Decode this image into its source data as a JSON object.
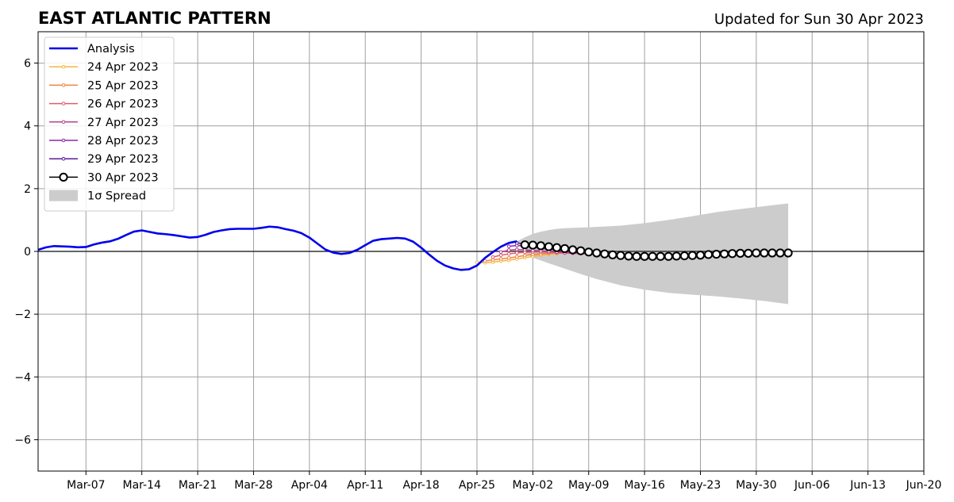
{
  "chart_data": {
    "type": "line",
    "title": "EAST ATLANTIC PATTERN",
    "subtitle": "Updated for Sun 30 Apr 2023",
    "xlabel": "",
    "ylabel": "",
    "ylim": [
      -7,
      7
    ],
    "xlim": [
      "2023-03-01",
      "2023-06-20"
    ],
    "x_ticks": [
      "Mar-07",
      "Mar-14",
      "Mar-21",
      "Mar-28",
      "Apr-04",
      "Apr-11",
      "Apr-18",
      "Apr-25",
      "May-02",
      "May-09",
      "May-16",
      "May-23",
      "May-30",
      "Jun-06",
      "Jun-13",
      "Jun-20"
    ],
    "x_tick_dates": [
      "2023-03-07",
      "2023-03-14",
      "2023-03-21",
      "2023-03-28",
      "2023-04-04",
      "2023-04-11",
      "2023-04-18",
      "2023-04-25",
      "2023-05-02",
      "2023-05-09",
      "2023-05-16",
      "2023-05-23",
      "2023-05-30",
      "2023-06-06",
      "2023-06-13",
      "2023-06-20"
    ],
    "y_ticks": [
      -6,
      -4,
      -2,
      0,
      2,
      4,
      6
    ],
    "y_tick_labels": [
      "−6",
      "−4",
      "−2",
      "0",
      "2",
      "4",
      "6"
    ],
    "grid": true,
    "legend_position": "top-left",
    "legend": [
      "Analysis",
      "24 Apr 2023",
      "25 Apr 2023",
      "26 Apr 2023",
      "27 Apr 2023",
      "28 Apr 2023",
      "29 Apr 2023",
      "30 Apr 2023",
      "1σ Spread"
    ],
    "analysis": {
      "name": "Analysis",
      "color": "#0000ee",
      "points": [
        [
          "2023-03-01",
          0.05
        ],
        [
          "2023-03-02",
          0.13
        ],
        [
          "2023-03-03",
          0.17
        ],
        [
          "2023-03-04",
          0.16
        ],
        [
          "2023-03-05",
          0.15
        ],
        [
          "2023-03-06",
          0.13
        ],
        [
          "2023-03-07",
          0.14
        ],
        [
          "2023-03-08",
          0.22
        ],
        [
          "2023-03-09",
          0.28
        ],
        [
          "2023-03-10",
          0.32
        ],
        [
          "2023-03-11",
          0.4
        ],
        [
          "2023-03-12",
          0.52
        ],
        [
          "2023-03-13",
          0.63
        ],
        [
          "2023-03-14",
          0.67
        ],
        [
          "2023-03-15",
          0.62
        ],
        [
          "2023-03-16",
          0.57
        ],
        [
          "2023-03-17",
          0.55
        ],
        [
          "2023-03-18",
          0.52
        ],
        [
          "2023-03-19",
          0.48
        ],
        [
          "2023-03-20",
          0.44
        ],
        [
          "2023-03-21",
          0.46
        ],
        [
          "2023-03-22",
          0.53
        ],
        [
          "2023-03-23",
          0.62
        ],
        [
          "2023-03-24",
          0.67
        ],
        [
          "2023-03-25",
          0.71
        ],
        [
          "2023-03-26",
          0.72
        ],
        [
          "2023-03-27",
          0.72
        ],
        [
          "2023-03-28",
          0.72
        ],
        [
          "2023-03-29",
          0.75
        ],
        [
          "2023-03-30",
          0.79
        ],
        [
          "2023-03-31",
          0.77
        ],
        [
          "2023-04-01",
          0.71
        ],
        [
          "2023-04-02",
          0.66
        ],
        [
          "2023-04-03",
          0.58
        ],
        [
          "2023-04-04",
          0.44
        ],
        [
          "2023-04-05",
          0.25
        ],
        [
          "2023-04-06",
          0.06
        ],
        [
          "2023-04-07",
          -0.04
        ],
        [
          "2023-04-08",
          -0.08
        ],
        [
          "2023-04-09",
          -0.05
        ],
        [
          "2023-04-10",
          0.05
        ],
        [
          "2023-04-11",
          0.2
        ],
        [
          "2023-04-12",
          0.34
        ],
        [
          "2023-04-13",
          0.39
        ],
        [
          "2023-04-14",
          0.41
        ],
        [
          "2023-04-15",
          0.43
        ],
        [
          "2023-04-16",
          0.41
        ],
        [
          "2023-04-17",
          0.31
        ],
        [
          "2023-04-18",
          0.12
        ],
        [
          "2023-04-19",
          -0.1
        ],
        [
          "2023-04-20",
          -0.3
        ],
        [
          "2023-04-21",
          -0.45
        ],
        [
          "2023-04-22",
          -0.54
        ],
        [
          "2023-04-23",
          -0.59
        ],
        [
          "2023-04-24",
          -0.57
        ],
        [
          "2023-04-25",
          -0.45
        ],
        [
          "2023-04-26",
          -0.21
        ],
        [
          "2023-04-27",
          -0.02
        ],
        [
          "2023-04-28",
          0.15
        ],
        [
          "2023-04-29",
          0.27
        ],
        [
          "2023-04-30",
          0.32
        ]
      ]
    },
    "forecasts": [
      {
        "name": "24 Apr 2023",
        "color": "#f5b642",
        "points": [
          [
            "2023-04-25",
            -0.35
          ],
          [
            "2023-04-26",
            -0.36
          ],
          [
            "2023-04-27",
            -0.34
          ],
          [
            "2023-04-28",
            -0.31
          ],
          [
            "2023-04-29",
            -0.28
          ],
          [
            "2023-04-30",
            -0.24
          ],
          [
            "2023-05-01",
            -0.2
          ],
          [
            "2023-05-02",
            -0.16
          ],
          [
            "2023-05-03",
            -0.12
          ],
          [
            "2023-05-04",
            -0.09
          ],
          [
            "2023-05-05",
            -0.07
          ],
          [
            "2023-05-06",
            -0.05
          ],
          [
            "2023-05-07",
            -0.04
          ],
          [
            "2023-05-08",
            -0.04
          ]
        ]
      },
      {
        "name": "25 Apr 2023",
        "color": "#f0843a",
        "points": [
          [
            "2023-04-26",
            -0.3
          ],
          [
            "2023-04-27",
            -0.27
          ],
          [
            "2023-04-28",
            -0.24
          ],
          [
            "2023-04-29",
            -0.21
          ],
          [
            "2023-04-30",
            -0.17
          ],
          [
            "2023-05-01",
            -0.13
          ],
          [
            "2023-05-02",
            -0.1
          ],
          [
            "2023-05-03",
            -0.08
          ],
          [
            "2023-05-04",
            -0.06
          ],
          [
            "2023-05-05",
            -0.05
          ],
          [
            "2023-05-06",
            -0.05
          ],
          [
            "2023-05-07",
            -0.05
          ],
          [
            "2023-05-08",
            -0.06
          ],
          [
            "2023-05-09",
            -0.07
          ]
        ]
      },
      {
        "name": "26 Apr 2023",
        "color": "#e05c6e",
        "points": [
          [
            "2023-04-27",
            -0.18
          ],
          [
            "2023-04-28",
            -0.12
          ],
          [
            "2023-04-29",
            -0.08
          ],
          [
            "2023-04-30",
            -0.05
          ],
          [
            "2023-05-01",
            -0.03
          ],
          [
            "2023-05-02",
            -0.02
          ],
          [
            "2023-05-03",
            -0.02
          ],
          [
            "2023-05-04",
            -0.03
          ],
          [
            "2023-05-05",
            -0.04
          ],
          [
            "2023-05-06",
            -0.05
          ],
          [
            "2023-05-07",
            -0.06
          ],
          [
            "2023-05-08",
            -0.07
          ],
          [
            "2023-05-09",
            -0.08
          ],
          [
            "2023-05-10",
            -0.09
          ]
        ]
      },
      {
        "name": "27 Apr 2023",
        "color": "#b5438f",
        "points": [
          [
            "2023-04-28",
            -0.02
          ],
          [
            "2023-04-29",
            0.04
          ],
          [
            "2023-04-30",
            0.06
          ],
          [
            "2023-05-01",
            0.05
          ],
          [
            "2023-05-02",
            0.03
          ],
          [
            "2023-05-03",
            0.02
          ],
          [
            "2023-05-04",
            0.0
          ],
          [
            "2023-05-05",
            -0.02
          ],
          [
            "2023-05-06",
            -0.04
          ],
          [
            "2023-05-07",
            -0.05
          ],
          [
            "2023-05-08",
            -0.06
          ],
          [
            "2023-05-09",
            -0.07
          ],
          [
            "2023-05-10",
            -0.08
          ],
          [
            "2023-05-11",
            -0.09
          ]
        ]
      },
      {
        "name": "28 Apr 2023",
        "color": "#8a2aa8",
        "points": [
          [
            "2023-04-29",
            0.16
          ],
          [
            "2023-04-30",
            0.19
          ],
          [
            "2023-05-01",
            0.17
          ],
          [
            "2023-05-02",
            0.13
          ],
          [
            "2023-05-03",
            0.1
          ],
          [
            "2023-05-04",
            0.07
          ],
          [
            "2023-05-05",
            0.04
          ],
          [
            "2023-05-06",
            0.01
          ],
          [
            "2023-05-07",
            -0.02
          ],
          [
            "2023-05-08",
            -0.04
          ],
          [
            "2023-05-09",
            -0.06
          ],
          [
            "2023-05-10",
            -0.08
          ],
          [
            "2023-05-11",
            -0.09
          ],
          [
            "2023-05-12",
            -0.1
          ]
        ]
      },
      {
        "name": "29 Apr 2023",
        "color": "#5a1a9a",
        "points": [
          [
            "2023-04-30",
            0.27
          ],
          [
            "2023-05-01",
            0.24
          ],
          [
            "2023-05-02",
            0.2
          ],
          [
            "2023-05-03",
            0.16
          ],
          [
            "2023-05-04",
            0.12
          ],
          [
            "2023-05-05",
            0.09
          ],
          [
            "2023-05-06",
            0.06
          ],
          [
            "2023-05-07",
            0.03
          ],
          [
            "2023-05-08",
            0.0
          ],
          [
            "2023-05-09",
            -0.03
          ],
          [
            "2023-05-10",
            -0.05
          ],
          [
            "2023-05-11",
            -0.07
          ],
          [
            "2023-05-12",
            -0.09
          ],
          [
            "2023-05-13",
            -0.1
          ]
        ]
      }
    ],
    "latest_forecast": {
      "name": "30 Apr 2023",
      "color": "#000000",
      "points": [
        [
          "2023-05-01",
          0.21
        ],
        [
          "2023-05-02",
          0.2
        ],
        [
          "2023-05-03",
          0.18
        ],
        [
          "2023-05-04",
          0.15
        ],
        [
          "2023-05-05",
          0.12
        ],
        [
          "2023-05-06",
          0.09
        ],
        [
          "2023-05-07",
          0.05
        ],
        [
          "2023-05-08",
          0.02
        ],
        [
          "2023-05-09",
          -0.02
        ],
        [
          "2023-05-10",
          -0.05
        ],
        [
          "2023-05-11",
          -0.08
        ],
        [
          "2023-05-12",
          -0.11
        ],
        [
          "2023-05-13",
          -0.13
        ],
        [
          "2023-05-14",
          -0.15
        ],
        [
          "2023-05-15",
          -0.16
        ],
        [
          "2023-05-16",
          -0.16
        ],
        [
          "2023-05-17",
          -0.16
        ],
        [
          "2023-05-18",
          -0.16
        ],
        [
          "2023-05-19",
          -0.16
        ],
        [
          "2023-05-20",
          -0.15
        ],
        [
          "2023-05-21",
          -0.14
        ],
        [
          "2023-05-22",
          -0.13
        ],
        [
          "2023-05-23",
          -0.12
        ],
        [
          "2023-05-24",
          -0.1
        ],
        [
          "2023-05-25",
          -0.09
        ],
        [
          "2023-05-26",
          -0.08
        ],
        [
          "2023-05-27",
          -0.07
        ],
        [
          "2023-05-28",
          -0.06
        ],
        [
          "2023-05-29",
          -0.06
        ],
        [
          "2023-05-30",
          -0.05
        ],
        [
          "2023-05-31",
          -0.05
        ],
        [
          "2023-06-01",
          -0.05
        ],
        [
          "2023-06-02",
          -0.05
        ],
        [
          "2023-06-03",
          -0.05
        ]
      ]
    },
    "spread": {
      "name": "1σ Spread",
      "color": "#cccccc",
      "upper": [
        [
          "2023-04-30",
          0.32
        ],
        [
          "2023-05-01",
          0.45
        ],
        [
          "2023-05-02",
          0.56
        ],
        [
          "2023-05-03",
          0.63
        ],
        [
          "2023-05-04",
          0.68
        ],
        [
          "2023-05-05",
          0.72
        ],
        [
          "2023-05-06",
          0.74
        ],
        [
          "2023-05-07",
          0.75
        ],
        [
          "2023-05-10",
          0.78
        ],
        [
          "2023-05-13",
          0.82
        ],
        [
          "2023-05-16",
          0.9
        ],
        [
          "2023-05-19",
          1.0
        ],
        [
          "2023-05-22",
          1.12
        ],
        [
          "2023-05-25",
          1.25
        ],
        [
          "2023-05-28",
          1.35
        ],
        [
          "2023-05-31",
          1.44
        ],
        [
          "2023-06-03",
          1.53
        ]
      ],
      "lower": [
        [
          "2023-04-30",
          0.32
        ],
        [
          "2023-05-01",
          -0.05
        ],
        [
          "2023-05-02",
          -0.2
        ],
        [
          "2023-05-04",
          -0.38
        ],
        [
          "2023-05-06",
          -0.55
        ],
        [
          "2023-05-08",
          -0.72
        ],
        [
          "2023-05-10",
          -0.88
        ],
        [
          "2023-05-13",
          -1.08
        ],
        [
          "2023-05-16",
          -1.22
        ],
        [
          "2023-05-19",
          -1.32
        ],
        [
          "2023-05-22",
          -1.38
        ],
        [
          "2023-05-25",
          -1.43
        ],
        [
          "2023-05-28",
          -1.5
        ],
        [
          "2023-05-31",
          -1.58
        ],
        [
          "2023-06-03",
          -1.68
        ]
      ]
    }
  }
}
